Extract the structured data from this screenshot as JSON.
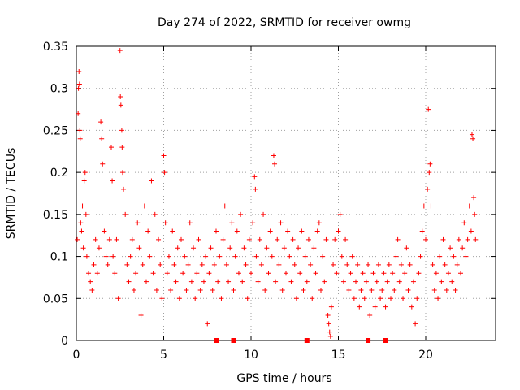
{
  "chart_data": {
    "type": "scatter",
    "title": "Day 274 of 2022, SRMTID for receiver owmg",
    "xlabel": "GPS time / hours",
    "ylabel": "SRMTID / TECUs",
    "xlim": [
      0,
      24
    ],
    "ylim": [
      0,
      0.35
    ],
    "xticks": [
      0,
      5,
      10,
      15,
      20
    ],
    "xtick_labels": [
      "0",
      "5",
      "10",
      "15",
      "20"
    ],
    "yticks": [
      0,
      0.05,
      0.1,
      0.15,
      0.2,
      0.25,
      0.3,
      0.35
    ],
    "ytick_labels": [
      "0",
      "0.05",
      "0.1",
      "0.15",
      "0.2",
      "0.25",
      "0.3",
      "0.35"
    ],
    "grid": true,
    "marker": "+",
    "color": "#ff0000",
    "series": [
      {
        "name": "SRMTID",
        "points": [
          [
            0.05,
            0.12
          ],
          [
            0.1,
            0.27
          ],
          [
            0.12,
            0.3
          ],
          [
            0.15,
            0.32
          ],
          [
            0.18,
            0.305
          ],
          [
            0.2,
            0.25
          ],
          [
            0.22,
            0.24
          ],
          [
            0.25,
            0.14
          ],
          [
            0.3,
            0.13
          ],
          [
            0.35,
            0.16
          ],
          [
            0.4,
            0.11
          ],
          [
            0.45,
            0.19
          ],
          [
            0.5,
            0.2
          ],
          [
            0.55,
            0.15
          ],
          [
            0.6,
            0.1
          ],
          [
            0.7,
            0.08
          ],
          [
            0.8,
            0.07
          ],
          [
            0.9,
            0.06
          ],
          [
            1.0,
            0.09
          ],
          [
            1.1,
            0.12
          ],
          [
            1.2,
            0.08
          ],
          [
            1.3,
            0.11
          ],
          [
            1.4,
            0.26
          ],
          [
            1.45,
            0.24
          ],
          [
            1.5,
            0.21
          ],
          [
            1.6,
            0.13
          ],
          [
            1.7,
            0.1
          ],
          [
            1.8,
            0.09
          ],
          [
            1.9,
            0.12
          ],
          [
            2.0,
            0.23
          ],
          [
            2.05,
            0.19
          ],
          [
            2.1,
            0.1
          ],
          [
            2.2,
            0.08
          ],
          [
            2.3,
            0.12
          ],
          [
            2.4,
            0.05
          ],
          [
            2.5,
            0.345
          ],
          [
            2.52,
            0.29
          ],
          [
            2.55,
            0.28
          ],
          [
            2.6,
            0.25
          ],
          [
            2.62,
            0.23
          ],
          [
            2.65,
            0.2
          ],
          [
            2.7,
            0.18
          ],
          [
            2.8,
            0.15
          ],
          [
            2.9,
            0.09
          ],
          [
            3.0,
            0.07
          ],
          [
            3.1,
            0.1
          ],
          [
            3.2,
            0.12
          ],
          [
            3.3,
            0.06
          ],
          [
            3.4,
            0.08
          ],
          [
            3.5,
            0.14
          ],
          [
            3.6,
            0.11
          ],
          [
            3.7,
            0.03
          ],
          [
            3.8,
            0.09
          ],
          [
            3.9,
            0.16
          ],
          [
            4.0,
            0.07
          ],
          [
            4.1,
            0.13
          ],
          [
            4.2,
            0.1
          ],
          [
            4.3,
            0.19
          ],
          [
            4.4,
            0.08
          ],
          [
            4.5,
            0.15
          ],
          [
            4.6,
            0.06
          ],
          [
            4.7,
            0.12
          ],
          [
            4.8,
            0.09
          ],
          [
            4.9,
            0.05
          ],
          [
            5.0,
            0.22
          ],
          [
            5.05,
            0.2
          ],
          [
            5.1,
            0.14
          ],
          [
            5.2,
            0.08
          ],
          [
            5.3,
            0.1
          ],
          [
            5.4,
            0.06
          ],
          [
            5.5,
            0.13
          ],
          [
            5.6,
            0.09
          ],
          [
            5.7,
            0.07
          ],
          [
            5.8,
            0.11
          ],
          [
            5.9,
            0.05
          ],
          [
            6.0,
            0.12
          ],
          [
            6.1,
            0.08
          ],
          [
            6.2,
            0.1
          ],
          [
            6.3,
            0.06
          ],
          [
            6.4,
            0.09
          ],
          [
            6.5,
            0.14
          ],
          [
            6.6,
            0.07
          ],
          [
            6.7,
            0.11
          ],
          [
            6.8,
            0.05
          ],
          [
            6.9,
            0.08
          ],
          [
            7.0,
            0.12
          ],
          [
            7.1,
            0.06
          ],
          [
            7.2,
            0.09
          ],
          [
            7.3,
            0.07
          ],
          [
            7.4,
            0.1
          ],
          [
            7.5,
            0.02
          ],
          [
            7.6,
            0.08
          ],
          [
            7.7,
            0.11
          ],
          [
            7.8,
            0.06
          ],
          [
            7.9,
            0.09
          ],
          [
            8.0,
            0.13
          ],
          [
            8.1,
            0.07
          ],
          [
            8.2,
            0.1
          ],
          [
            8.3,
            0.05
          ],
          [
            8.4,
            0.12
          ],
          [
            8.5,
            0.16
          ],
          [
            8.6,
            0.09
          ],
          [
            8.7,
            0.07
          ],
          [
            8.8,
            0.11
          ],
          [
            8.9,
            0.14
          ],
          [
            9.0,
            0.06
          ],
          [
            9.1,
            0.1
          ],
          [
            9.2,
            0.13
          ],
          [
            9.3,
            0.08
          ],
          [
            9.4,
            0.15
          ],
          [
            9.5,
            0.07
          ],
          [
            9.6,
            0.11
          ],
          [
            9.7,
            0.09
          ],
          [
            9.8,
            0.05
          ],
          [
            9.9,
            0.12
          ],
          [
            10.0,
            0.08
          ],
          [
            10.1,
            0.14
          ],
          [
            10.2,
            0.195
          ],
          [
            10.25,
            0.18
          ],
          [
            10.3,
            0.1
          ],
          [
            10.4,
            0.07
          ],
          [
            10.5,
            0.12
          ],
          [
            10.6,
            0.09
          ],
          [
            10.7,
            0.15
          ],
          [
            10.8,
            0.06
          ],
          [
            10.9,
            0.11
          ],
          [
            11.0,
            0.08
          ],
          [
            11.1,
            0.13
          ],
          [
            11.2,
            0.1
          ],
          [
            11.3,
            0.22
          ],
          [
            11.35,
            0.21
          ],
          [
            11.4,
            0.07
          ],
          [
            11.5,
            0.12
          ],
          [
            11.6,
            0.09
          ],
          [
            11.7,
            0.14
          ],
          [
            11.8,
            0.06
          ],
          [
            11.9,
            0.11
          ],
          [
            12.0,
            0.08
          ],
          [
            12.1,
            0.13
          ],
          [
            12.2,
            0.1
          ],
          [
            12.3,
            0.07
          ],
          [
            12.4,
            0.12
          ],
          [
            12.5,
            0.09
          ],
          [
            12.6,
            0.05
          ],
          [
            12.7,
            0.11
          ],
          [
            12.8,
            0.08
          ],
          [
            12.9,
            0.13
          ],
          [
            13.0,
            0.06
          ],
          [
            13.1,
            0.1
          ],
          [
            13.2,
            0.07
          ],
          [
            13.3,
            0.12
          ],
          [
            13.4,
            0.09
          ],
          [
            13.5,
            0.05
          ],
          [
            13.6,
            0.11
          ],
          [
            13.7,
            0.08
          ],
          [
            13.8,
            0.13
          ],
          [
            13.9,
            0.14
          ],
          [
            14.0,
            0.06
          ],
          [
            14.1,
            0.1
          ],
          [
            14.2,
            0.07
          ],
          [
            14.3,
            0.12
          ],
          [
            14.4,
            0.03
          ],
          [
            14.45,
            0.02
          ],
          [
            14.5,
            0.01
          ],
          [
            14.55,
            0.005
          ],
          [
            14.6,
            0.04
          ],
          [
            14.7,
            0.09
          ],
          [
            14.8,
            0.12
          ],
          [
            14.9,
            0.08
          ],
          [
            15.0,
            0.13
          ],
          [
            15.1,
            0.15
          ],
          [
            15.2,
            0.1
          ],
          [
            15.3,
            0.07
          ],
          [
            15.4,
            0.12
          ],
          [
            15.5,
            0.09
          ],
          [
            15.6,
            0.06
          ],
          [
            15.7,
            0.08
          ],
          [
            15.8,
            0.1
          ],
          [
            15.9,
            0.05
          ],
          [
            16.0,
            0.07
          ],
          [
            16.1,
            0.09
          ],
          [
            16.2,
            0.04
          ],
          [
            16.3,
            0.06
          ],
          [
            16.4,
            0.08
          ],
          [
            16.5,
            0.05
          ],
          [
            16.6,
            0.07
          ],
          [
            16.7,
            0.09
          ],
          [
            16.8,
            0.03
          ],
          [
            16.9,
            0.06
          ],
          [
            17.0,
            0.08
          ],
          [
            17.1,
            0.04
          ],
          [
            17.2,
            0.07
          ],
          [
            17.3,
            0.09
          ],
          [
            17.4,
            0.05
          ],
          [
            17.5,
            0.06
          ],
          [
            17.6,
            0.08
          ],
          [
            17.7,
            0.04
          ],
          [
            17.8,
            0.07
          ],
          [
            17.9,
            0.09
          ],
          [
            18.0,
            0.05
          ],
          [
            18.1,
            0.08
          ],
          [
            18.2,
            0.06
          ],
          [
            18.3,
            0.1
          ],
          [
            18.4,
            0.12
          ],
          [
            18.5,
            0.07
          ],
          [
            18.6,
            0.09
          ],
          [
            18.7,
            0.05
          ],
          [
            18.8,
            0.08
          ],
          [
            18.9,
            0.11
          ],
          [
            19.0,
            0.06
          ],
          [
            19.1,
            0.09
          ],
          [
            19.2,
            0.04
          ],
          [
            19.3,
            0.07
          ],
          [
            19.4,
            0.02
          ],
          [
            19.5,
            0.05
          ],
          [
            19.6,
            0.08
          ],
          [
            19.7,
            0.1
          ],
          [
            19.8,
            0.13
          ],
          [
            19.9,
            0.16
          ],
          [
            20.0,
            0.12
          ],
          [
            20.1,
            0.18
          ],
          [
            20.15,
            0.275
          ],
          [
            20.2,
            0.2
          ],
          [
            20.25,
            0.21
          ],
          [
            20.3,
            0.16
          ],
          [
            20.4,
            0.09
          ],
          [
            20.5,
            0.06
          ],
          [
            20.6,
            0.08
          ],
          [
            20.7,
            0.05
          ],
          [
            20.8,
            0.1
          ],
          [
            20.9,
            0.07
          ],
          [
            21.0,
            0.12
          ],
          [
            21.1,
            0.09
          ],
          [
            21.2,
            0.06
          ],
          [
            21.3,
            0.08
          ],
          [
            21.4,
            0.11
          ],
          [
            21.5,
            0.07
          ],
          [
            21.6,
            0.1
          ],
          [
            21.7,
            0.06
          ],
          [
            21.8,
            0.09
          ],
          [
            21.9,
            0.12
          ],
          [
            22.0,
            0.08
          ],
          [
            22.1,
            0.11
          ],
          [
            22.2,
            0.14
          ],
          [
            22.3,
            0.1
          ],
          [
            22.4,
            0.12
          ],
          [
            22.5,
            0.16
          ],
          [
            22.6,
            0.13
          ],
          [
            22.65,
            0.245
          ],
          [
            22.7,
            0.24
          ],
          [
            22.75,
            0.17
          ],
          [
            22.8,
            0.15
          ],
          [
            22.85,
            0.12
          ]
        ]
      }
    ],
    "zero_markers_x": [
      8.0,
      9.0,
      13.2,
      16.7,
      17.7
    ]
  }
}
